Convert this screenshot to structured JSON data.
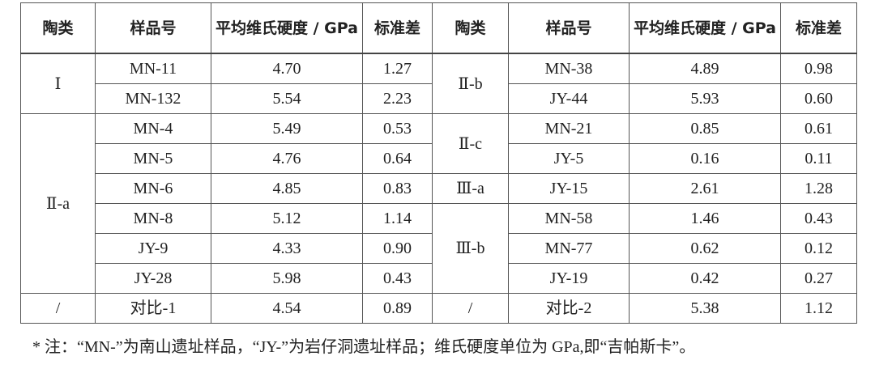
{
  "table": {
    "headers": [
      "陶类",
      "样品号",
      "平均维氏硬度 / GPa",
      "标准差",
      "陶类",
      "样品号",
      "平均维氏硬度 / GPa",
      "标准差"
    ],
    "left_groups": [
      {
        "category": "Ⅰ",
        "rows": [
          {
            "sample": "MN-11",
            "hardness": "4.70",
            "sd": "1.27"
          },
          {
            "sample": "MN-132",
            "hardness": "5.54",
            "sd": "2.23"
          }
        ]
      },
      {
        "category": "Ⅱ-a",
        "rows": [
          {
            "sample": "MN-4",
            "hardness": "5.49",
            "sd": "0.53"
          },
          {
            "sample": "MN-5",
            "hardness": "4.76",
            "sd": "0.64"
          },
          {
            "sample": "MN-6",
            "hardness": "4.85",
            "sd": "0.83"
          },
          {
            "sample": "MN-8",
            "hardness": "5.12",
            "sd": "1.14"
          },
          {
            "sample": "JY-9",
            "hardness": "4.33",
            "sd": "0.90"
          },
          {
            "sample": "JY-28",
            "hardness": "5.98",
            "sd": "0.43"
          }
        ]
      },
      {
        "category": "/",
        "rows": [
          {
            "sample": "对比-1",
            "hardness": "4.54",
            "sd": "0.89"
          }
        ]
      }
    ],
    "right_groups": [
      {
        "category": "Ⅱ-b",
        "rows": [
          {
            "sample": "MN-38",
            "hardness": "4.89",
            "sd": "0.98"
          },
          {
            "sample": "JY-44",
            "hardness": "5.93",
            "sd": "0.60"
          }
        ]
      },
      {
        "category": "Ⅱ-c",
        "rows": [
          {
            "sample": "MN-21",
            "hardness": "0.85",
            "sd": "0.61"
          },
          {
            "sample": "JY-5",
            "hardness": "0.16",
            "sd": "0.11"
          }
        ]
      },
      {
        "category": "Ⅲ-a",
        "rows": [
          {
            "sample": "JY-15",
            "hardness": "2.61",
            "sd": "1.28"
          }
        ]
      },
      {
        "category": "Ⅲ-b",
        "rows": [
          {
            "sample": "MN-58",
            "hardness": "1.46",
            "sd": "0.43"
          },
          {
            "sample": "MN-77",
            "hardness": "0.62",
            "sd": "0.12"
          },
          {
            "sample": "JY-19",
            "hardness": "0.42",
            "sd": "0.27"
          }
        ]
      },
      {
        "category": "/",
        "rows": [
          {
            "sample": "对比-2",
            "hardness": "5.38",
            "sd": "1.12"
          }
        ]
      }
    ]
  },
  "footnote": "* 注：“MN-”为南山遗址样品，“JY-”为岩仔洞遗址样品；维氏硬度单位为 GPa,即“吉帕斯卡”。"
}
